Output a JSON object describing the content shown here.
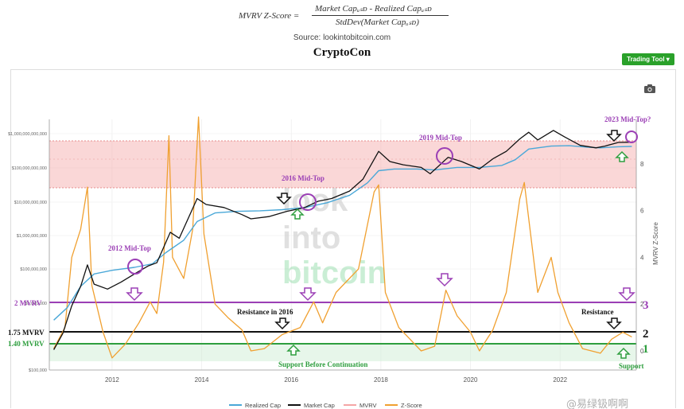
{
  "header": {
    "formula_lhs": "MVRV Z-Score  =",
    "formula_num": "Market Capᵤₛᴅ - Realized Capᵤₛᴅ",
    "formula_den": "StdDev(Market Capᵤₛᴅ)",
    "source": "Source: lookintobitcoin.com",
    "title": "CryptoCon",
    "trading_tool": "Trading Tool ▾"
  },
  "watermark": [
    "look",
    "into",
    "bitcoin"
  ],
  "colors": {
    "realized_cap": "#4aa8d8",
    "market_cap": "#111111",
    "mvrv_band": "#f4a6a6",
    "zscore": "#f0a030",
    "purple": "#9b3fb5",
    "green": "#2e9e3e"
  },
  "chart_data": {
    "type": "line",
    "x_axis": {
      "ticks": [
        "2012",
        "2014",
        "2016",
        "2018",
        "2020",
        "2022"
      ],
      "range": [
        2010.6,
        2023.7
      ]
    },
    "y_left": {
      "scale": "log",
      "ticks": [
        "$100,000",
        "$1,000,000",
        "$10,000,000",
        "$100,000,000",
        "$1,000,000,000",
        "$10,000,000,000",
        "$100,000,000,000",
        "$1,000,000,000,000"
      ],
      "small_labels": [
        "$100,000",
        "$1,000,000",
        "$100,000,000",
        "$1,000,000,000",
        "$10,000,000,000",
        "$100,000,000,000",
        "$1,000,000,000,000"
      ]
    },
    "y_right": {
      "label": "MVRV Z-Score",
      "ticks": [
        "0",
        "2",
        "4",
        "6",
        "8"
      ],
      "range": [
        -0.5,
        10
      ]
    },
    "series": [
      {
        "name": "Realized Cap",
        "points": [
          [
            2010.7,
            3000000
          ],
          [
            2011.0,
            7000000
          ],
          [
            2011.3,
            30000000
          ],
          [
            2011.6,
            70000000
          ],
          [
            2012.0,
            90000000
          ],
          [
            2012.5,
            110000000
          ],
          [
            2012.9,
            140000000
          ],
          [
            2013.2,
            300000000
          ],
          [
            2013.6,
            700000000
          ],
          [
            2013.9,
            2500000000
          ],
          [
            2014.3,
            4500000000
          ],
          [
            2014.8,
            5000000000
          ],
          [
            2015.3,
            5200000000
          ],
          [
            2015.8,
            5600000000
          ],
          [
            2016.3,
            6500000000
          ],
          [
            2016.8,
            9000000000
          ],
          [
            2017.3,
            15000000000
          ],
          [
            2017.7,
            35000000000
          ],
          [
            2017.95,
            80000000000
          ],
          [
            2018.3,
            90000000000
          ],
          [
            2018.8,
            90000000000
          ],
          [
            2019.2,
            84000000000
          ],
          [
            2019.7,
            100000000000
          ],
          [
            2020.2,
            100000000000
          ],
          [
            2020.7,
            115000000000
          ],
          [
            2021.0,
            170000000000
          ],
          [
            2021.3,
            350000000000
          ],
          [
            2021.8,
            430000000000
          ],
          [
            2022.2,
            440000000000
          ],
          [
            2022.6,
            400000000000
          ],
          [
            2022.9,
            380000000000
          ],
          [
            2023.3,
            410000000000
          ],
          [
            2023.6,
            420000000000
          ]
        ]
      },
      {
        "name": "Market Cap",
        "points": [
          [
            2010.7,
            400000
          ],
          [
            2010.9,
            1200000
          ],
          [
            2011.1,
            8000000
          ],
          [
            2011.3,
            30000000
          ],
          [
            2011.45,
            130000000
          ],
          [
            2011.6,
            35000000
          ],
          [
            2011.9,
            25000000
          ],
          [
            2012.2,
            40000000
          ],
          [
            2012.5,
            70000000
          ],
          [
            2012.8,
            120000000
          ],
          [
            2013.0,
            150000000
          ],
          [
            2013.3,
            1200000000
          ],
          [
            2013.5,
            800000000
          ],
          [
            2013.9,
            12000000000
          ],
          [
            2014.1,
            8000000000
          ],
          [
            2014.5,
            6500000000
          ],
          [
            2014.9,
            4000000000
          ],
          [
            2015.1,
            3000000000
          ],
          [
            2015.5,
            3500000000
          ],
          [
            2015.9,
            5000000000
          ],
          [
            2016.3,
            6500000000
          ],
          [
            2016.6,
            10000000000
          ],
          [
            2016.9,
            12000000000
          ],
          [
            2017.3,
            20000000000
          ],
          [
            2017.6,
            45000000000
          ],
          [
            2017.95,
            300000000000
          ],
          [
            2018.2,
            150000000000
          ],
          [
            2018.5,
            120000000000
          ],
          [
            2018.9,
            100000000000
          ],
          [
            2019.1,
            65000000000
          ],
          [
            2019.5,
            200000000000
          ],
          [
            2019.8,
            150000000000
          ],
          [
            2020.2,
            90000000000
          ],
          [
            2020.5,
            180000000000
          ],
          [
            2020.8,
            300000000000
          ],
          [
            2021.1,
            700000000000
          ],
          [
            2021.3,
            1100000000000
          ],
          [
            2021.5,
            650000000000
          ],
          [
            2021.85,
            1250000000000
          ],
          [
            2022.1,
            800000000000
          ],
          [
            2022.45,
            450000000000
          ],
          [
            2022.8,
            380000000000
          ],
          [
            2023.0,
            430000000000
          ],
          [
            2023.3,
            550000000000
          ],
          [
            2023.6,
            560000000000
          ]
        ]
      },
      {
        "name": "MVRV",
        "band": [
          [
            2010.6,
            2.3
          ],
          [
            2023.7,
            2.3
          ]
        ]
      },
      {
        "name": "Z-Score",
        "points": [
          [
            2010.7,
            0.1
          ],
          [
            2010.95,
            1.0
          ],
          [
            2011.1,
            4.0
          ],
          [
            2011.3,
            5.2
          ],
          [
            2011.45,
            7.0
          ],
          [
            2011.55,
            2.8
          ],
          [
            2011.8,
            0.8
          ],
          [
            2012.0,
            -0.3
          ],
          [
            2012.3,
            0.3
          ],
          [
            2012.6,
            1.2
          ],
          [
            2012.85,
            2.1
          ],
          [
            2013.0,
            1.6
          ],
          [
            2013.15,
            3.8
          ],
          [
            2013.27,
            9.2
          ],
          [
            2013.35,
            4.0
          ],
          [
            2013.6,
            3.1
          ],
          [
            2013.8,
            5.2
          ],
          [
            2013.93,
            10.0
          ],
          [
            2014.05,
            5.0
          ],
          [
            2014.3,
            2.0
          ],
          [
            2014.6,
            1.4
          ],
          [
            2014.9,
            0.9
          ],
          [
            2015.1,
            0.0
          ],
          [
            2015.4,
            0.1
          ],
          [
            2015.8,
            0.7
          ],
          [
            2016.2,
            1.0
          ],
          [
            2016.5,
            2.1
          ],
          [
            2016.7,
            1.2
          ],
          [
            2017.0,
            2.5
          ],
          [
            2017.5,
            3.5
          ],
          [
            2017.85,
            6.8
          ],
          [
            2017.95,
            7.1
          ],
          [
            2018.1,
            2.5
          ],
          [
            2018.4,
            1.0
          ],
          [
            2018.9,
            0.0
          ],
          [
            2019.2,
            0.2
          ],
          [
            2019.45,
            2.6
          ],
          [
            2019.7,
            1.5
          ],
          [
            2020.0,
            0.8
          ],
          [
            2020.2,
            0.0
          ],
          [
            2020.5,
            0.9
          ],
          [
            2020.8,
            2.5
          ],
          [
            2021.1,
            6.5
          ],
          [
            2021.2,
            7.2
          ],
          [
            2021.5,
            2.5
          ],
          [
            2021.8,
            4.0
          ],
          [
            2021.95,
            2.5
          ],
          [
            2022.2,
            1.2
          ],
          [
            2022.5,
            0.1
          ],
          [
            2022.9,
            -0.1
          ],
          [
            2023.15,
            0.5
          ],
          [
            2023.4,
            0.8
          ],
          [
            2023.6,
            0.6
          ]
        ]
      }
    ],
    "legend": [
      "Realized Cap",
      "Market Cap",
      "MVRV",
      "Z-Score"
    ],
    "legend_position": "bottom"
  },
  "annotations": {
    "mid_2012": "2012 Mid-Top",
    "mid_2016": "2016 Mid-Top",
    "mid_2019": "2019 Mid-Top",
    "mid_2023": "2023 Mid-Top?",
    "level_2_mvrv": "2 MVRV",
    "level_175_mvrv": "1.75 MVRV",
    "level_140_mvrv": "1.40 MVRV",
    "resistance_2016": "Resistance in 2016",
    "resistance": "Resistance",
    "support_cont": "Support Before Continuation",
    "support": "Support",
    "num_3": "3",
    "num_2": "2",
    "num_1": "1"
  },
  "footer_watermark": "@易绿钑啊啊"
}
